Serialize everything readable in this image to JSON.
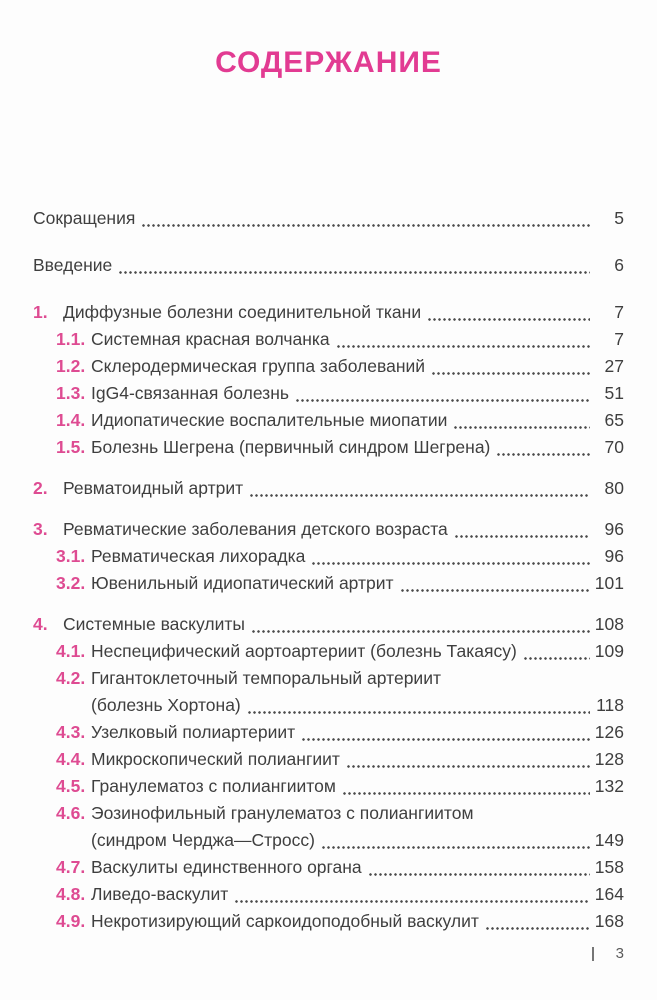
{
  "page": {
    "title": "СОДЕРЖАНИЕ",
    "footer": {
      "page_number": "3"
    }
  },
  "colors": {
    "accent_title": "#e23b92",
    "accent_number": "#de4b92",
    "body_text": "#3f3f3f",
    "dot_leader": "#4a4a4a",
    "footer_text": "#5a5a5a",
    "page_background": "#fdfdfd"
  },
  "toc": {
    "front_matter": [
      {
        "label": "Сокращения",
        "page": "5"
      },
      {
        "label": "Введение",
        "page": "6"
      }
    ],
    "chapters": [
      {
        "number": "1.",
        "title": "Диффузные болезни соединительной ткани",
        "page": "7",
        "sections": [
          {
            "number": "1.1.",
            "title": "Системная красная волчанка",
            "page": "7"
          },
          {
            "number": "1.2.",
            "title": "Склеродермическая группа заболеваний",
            "page": "27"
          },
          {
            "number": "1.3.",
            "title": "IgG4-связанная болезнь",
            "page": "51"
          },
          {
            "number": "1.4.",
            "title": "Идиопатические воспалительные миопатии",
            "page": "65"
          },
          {
            "number": "1.5.",
            "title": "Болезнь Шегрена (первичный синдром Шегрена)",
            "page": "70"
          }
        ]
      },
      {
        "number": "2.",
        "title": "Ревматоидный артрит",
        "page": "80",
        "sections": []
      },
      {
        "number": "3.",
        "title": "Ревматические заболевания детского возраста",
        "page": "96",
        "sections": [
          {
            "number": "3.1.",
            "title": "Ревматическая лихорадка",
            "page": "96"
          },
          {
            "number": "3.2.",
            "title": "Ювенильный идиопатический артрит",
            "page": "101"
          }
        ]
      },
      {
        "number": "4.",
        "title": "Системные васкулиты",
        "page": "108",
        "sections": [
          {
            "number": "4.1.",
            "title": "Неспецифический аортоартериит (болезнь Такаясу)",
            "page": "109"
          },
          {
            "number": "4.2.",
            "title": "Гигантоклеточный темпоральный артериит",
            "title_continued": "(болезнь Хортона)",
            "page": "118"
          },
          {
            "number": "4.3.",
            "title": "Узелковый полиартериит",
            "page": "126"
          },
          {
            "number": "4.4.",
            "title": "Микроскопический полиангиит",
            "page": "128"
          },
          {
            "number": "4.5.",
            "title": "Гранулематоз с полиангиитом",
            "page": "132"
          },
          {
            "number": "4.6.",
            "title": "Эозинофильный гранулематоз с полиангиитом",
            "title_continued": "(синдром Черджа—Стросс)",
            "page": "149"
          },
          {
            "number": "4.7.",
            "title": "Васкулиты единственного органа",
            "page": "158"
          },
          {
            "number": "4.8.",
            "title": "Ливедо-васкулит",
            "page": "164"
          },
          {
            "number": "4.9.",
            "title": "Некротизирующий саркоидоподобный васкулит",
            "page": "168"
          }
        ]
      }
    ]
  }
}
